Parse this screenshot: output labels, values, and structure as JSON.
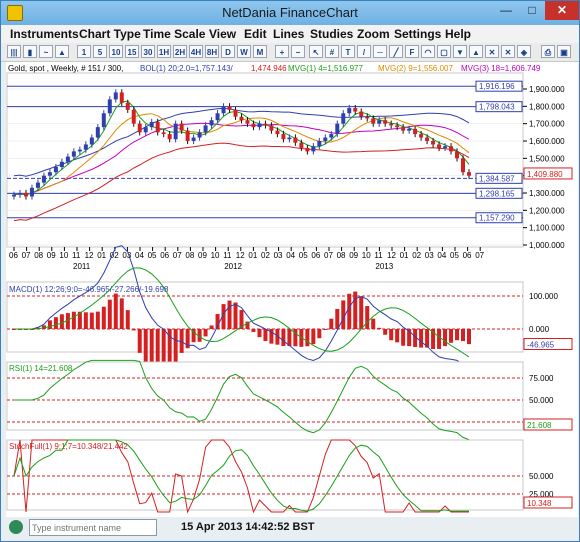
{
  "window": {
    "title": "NetDania FinanceChart",
    "min_glyph": "—",
    "max_glyph": "□",
    "close_glyph": "✕"
  },
  "menu": [
    "Instruments",
    "Chart Type",
    "Time Scale",
    "View",
    "Edit",
    "Lines",
    "Studies",
    "Zoom",
    "Settings",
    "Help"
  ],
  "toolbar": {
    "buttons": [
      "1",
      "5",
      "10",
      "15",
      "30",
      "1H",
      "2H",
      "4H",
      "8H",
      "D",
      "W",
      "M"
    ]
  },
  "header": {
    "instrument": "Gold, spot , Weekly, # 151 / 300,",
    "bol": "BOL(1) 20;2.0=1,757.143/",
    "bol_low": "1,474.946",
    "mvg1": "MVG(1) 4=1,516.977",
    "mvg2": "MVG(2) 9=1,556.007",
    "mvg3": "MVG(3) 18=1,606.749",
    "colors": {
      "bol": "#2f3fae",
      "bol_low": "#d42020",
      "mvg1": "#1aa01a",
      "mvg2": "#e08a00",
      "mvg3": "#c000c0"
    }
  },
  "price_axis": {
    "ticks": [
      "1,900.000",
      "1,800.000",
      "1,700.000",
      "1,600.000",
      "1,500.000",
      "1,400.000",
      "1,300.000",
      "1,200.000",
      "1,100.000",
      "1,000.000"
    ],
    "hlines": [
      "1,916.196",
      "1,798.043",
      "1,384.587",
      "1,298.165",
      "1,157.290"
    ],
    "last": "1,409.880"
  },
  "time_axis": {
    "months": [
      "06",
      "07",
      "08",
      "09",
      "10",
      "11",
      "12",
      "01",
      "02",
      "03",
      "04",
      "05",
      "06",
      "07",
      "08",
      "09",
      "10",
      "11",
      "12",
      "01",
      "02",
      "03",
      "04",
      "05",
      "06",
      "07",
      "08",
      "09",
      "10",
      "11",
      "12",
      "01",
      "02",
      "03",
      "04",
      "05",
      "06",
      "07"
    ],
    "years": [
      "2011",
      "2012",
      "2013"
    ]
  },
  "macd": {
    "label": "MACD(1) 12;26;9;0=-46.965/-27.266/-19.698",
    "ticks": [
      "100.000",
      "0.000"
    ],
    "last": "-46.965"
  },
  "rsi": {
    "label": "RSI(1) 14=21.608",
    "ticks": [
      "75.000",
      "50.000",
      "25.000"
    ],
    "last": "21.608"
  },
  "stoch": {
    "label": "StochFull(1) 9;1;7=10.348/21.442",
    "ticks": [
      "50.000",
      "25.000"
    ],
    "last": "10.348"
  },
  "status": {
    "instrument_placeholder": "Type instrument name",
    "datetime": "15 Apr 2013 14:42:52 BST"
  }
}
